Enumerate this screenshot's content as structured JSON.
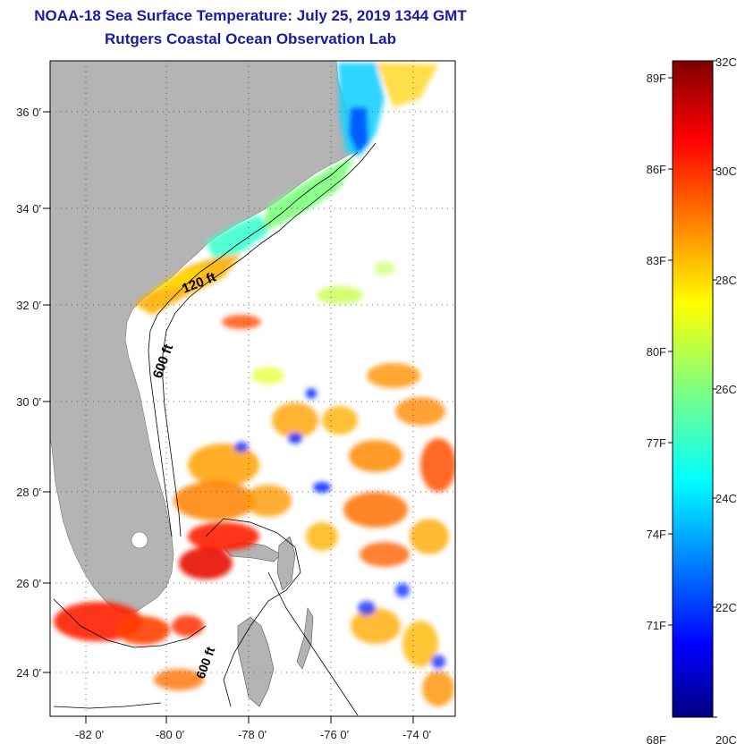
{
  "title": "NOAA-18 Sea Surface Temperature:  July 25, 2019 1344 GMT",
  "subtitle": "Rutgers Coastal Ocean Observation Lab",
  "map": {
    "lat_ticks": [
      "36 0'",
      "34 0'",
      "32 0'",
      "30 0'",
      "28 0'",
      "26 0'",
      "24 0'"
    ],
    "lon_ticks": [
      "-82 0'",
      "-80 0'",
      "-78 0'",
      "-76 0'",
      "-74 0'"
    ],
    "depth_labels": [
      "120 ft",
      "600 ft",
      "600 ft"
    ],
    "land_color": "#b4b4b4",
    "ocean_color": "#ffffff"
  },
  "colorbar": {
    "fahrenheit": [
      "89F",
      "86F",
      "83F",
      "80F",
      "77F",
      "74F",
      "71F",
      "68F"
    ],
    "celsius": [
      "32C",
      "30C",
      "28C",
      "26C",
      "24C",
      "22C",
      "20C"
    ],
    "colormap": "jet",
    "range_c": [
      20,
      32
    ]
  }
}
